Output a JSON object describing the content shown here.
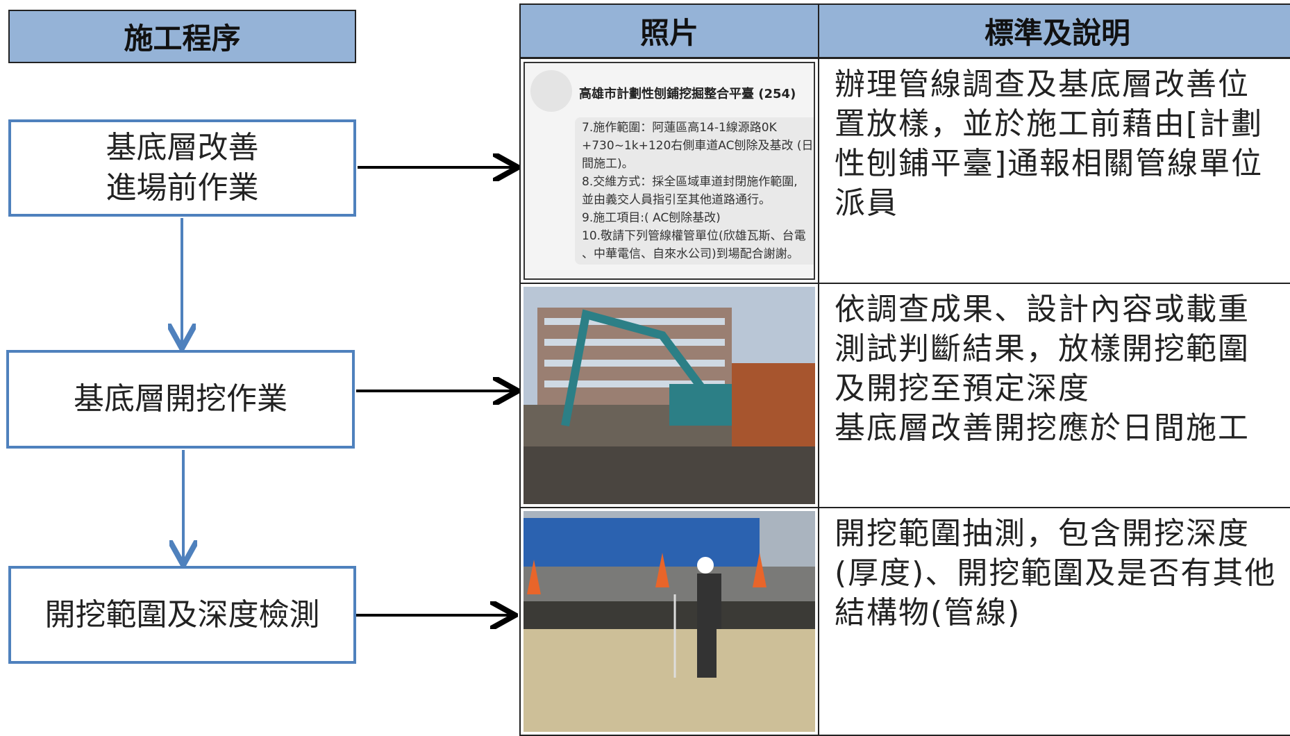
{
  "flow": {
    "header": "施工程序",
    "steps": [
      {
        "lines": [
          "基底層改善",
          "進場前作業"
        ]
      },
      {
        "lines": [
          "基底層開挖作業"
        ]
      },
      {
        "lines": [
          "開挖範圍及深度檢測"
        ]
      }
    ]
  },
  "table": {
    "headers": [
      "照片",
      "標準及說明"
    ],
    "rows": [
      {
        "photo_title": "高雄市計劃性刨鋪挖掘整合平臺 (254)",
        "photo_lines": [
          "7.施作範圍：阿蓮區高14-1線源路0K",
          "+730~1k+120右側車道AC刨除及基改 (日",
          "間施工)。",
          "8.交維方式：採全區域車道封閉施作範圍,",
          "並由義交人員指引至其他道路通行。",
          "9.施工項目:( AC刨除基改)",
          "10.敬請下列管線權管單位(欣雄瓦斯、台電",
          "、中華電信、自來水公司)到場配合謝謝。"
        ],
        "description": [
          "辦理管線調查及基底層改善位",
          "置放樣，並於施工前藉由[計劃",
          "性刨鋪平臺]通報相關管線單位",
          "派員"
        ]
      },
      {
        "description": [
          "依調查成果、設計內容或載重",
          "測試判斷結果，放樣開挖範圍",
          "及開挖至預定深度",
          "基底層改善開挖應於日間施工"
        ]
      },
      {
        "description": [
          "開挖範圍抽測，包含開挖深度",
          "(厚度)、開挖範圍及是否有其他",
          "結構物(管線)"
        ]
      }
    ]
  }
}
